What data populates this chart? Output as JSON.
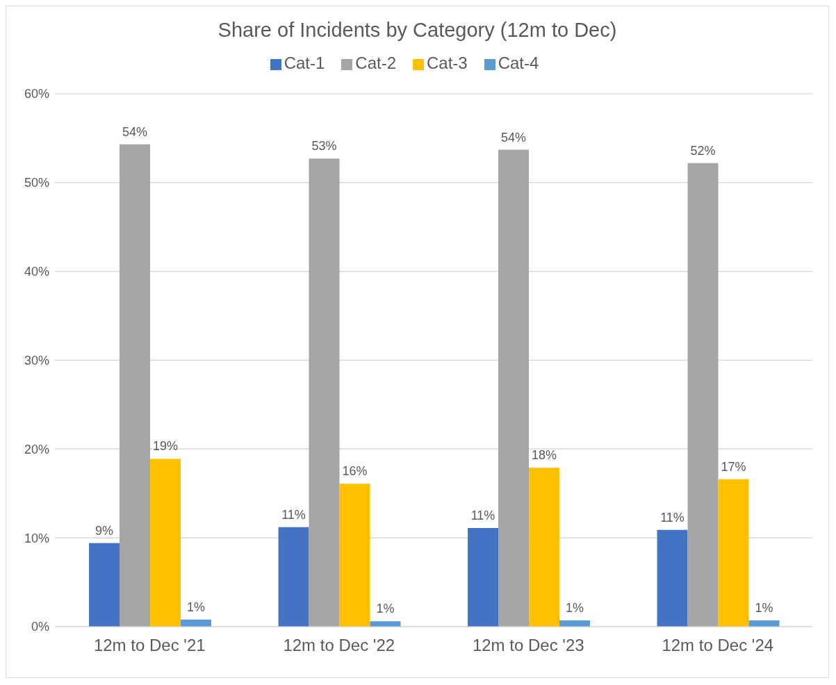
{
  "chart_data": {
    "type": "bar",
    "title": "Share of Incidents by Category (12m to Dec)",
    "categories": [
      "12m to Dec '21",
      "12m to Dec '22",
      "12m to Dec '23",
      "12m to Dec '24"
    ],
    "series": [
      {
        "name": "Cat-1",
        "color": "#4472c4",
        "values": [
          9.4,
          11.2,
          11.1,
          10.9
        ],
        "value_labels": [
          "9%",
          "11%",
          "11%",
          "11%"
        ]
      },
      {
        "name": "Cat-2",
        "color": "#a5a5a5",
        "values": [
          54.3,
          52.7,
          53.7,
          52.2
        ],
        "value_labels": [
          "54%",
          "53%",
          "54%",
          "52%"
        ]
      },
      {
        "name": "Cat-3",
        "color": "#ffc000",
        "values": [
          18.9,
          16.1,
          17.9,
          16.6
        ],
        "value_labels": [
          "19%",
          "16%",
          "18%",
          "17%"
        ]
      },
      {
        "name": "Cat-4",
        "color": "#5b9bd5",
        "values": [
          0.8,
          0.6,
          0.7,
          0.7
        ],
        "value_labels": [
          "1%",
          "1%",
          "1%",
          "1%"
        ]
      }
    ],
    "ylim": [
      0,
      60
    ],
    "yticks": [
      {
        "value": 0,
        "label": "0%"
      },
      {
        "value": 10,
        "label": "10%"
      },
      {
        "value": 20,
        "label": "20%"
      },
      {
        "value": 30,
        "label": "30%"
      },
      {
        "value": 40,
        "label": "40%"
      },
      {
        "value": 50,
        "label": "50%"
      },
      {
        "value": 60,
        "label": "60%"
      }
    ],
    "grid": "y",
    "legend": "top"
  }
}
